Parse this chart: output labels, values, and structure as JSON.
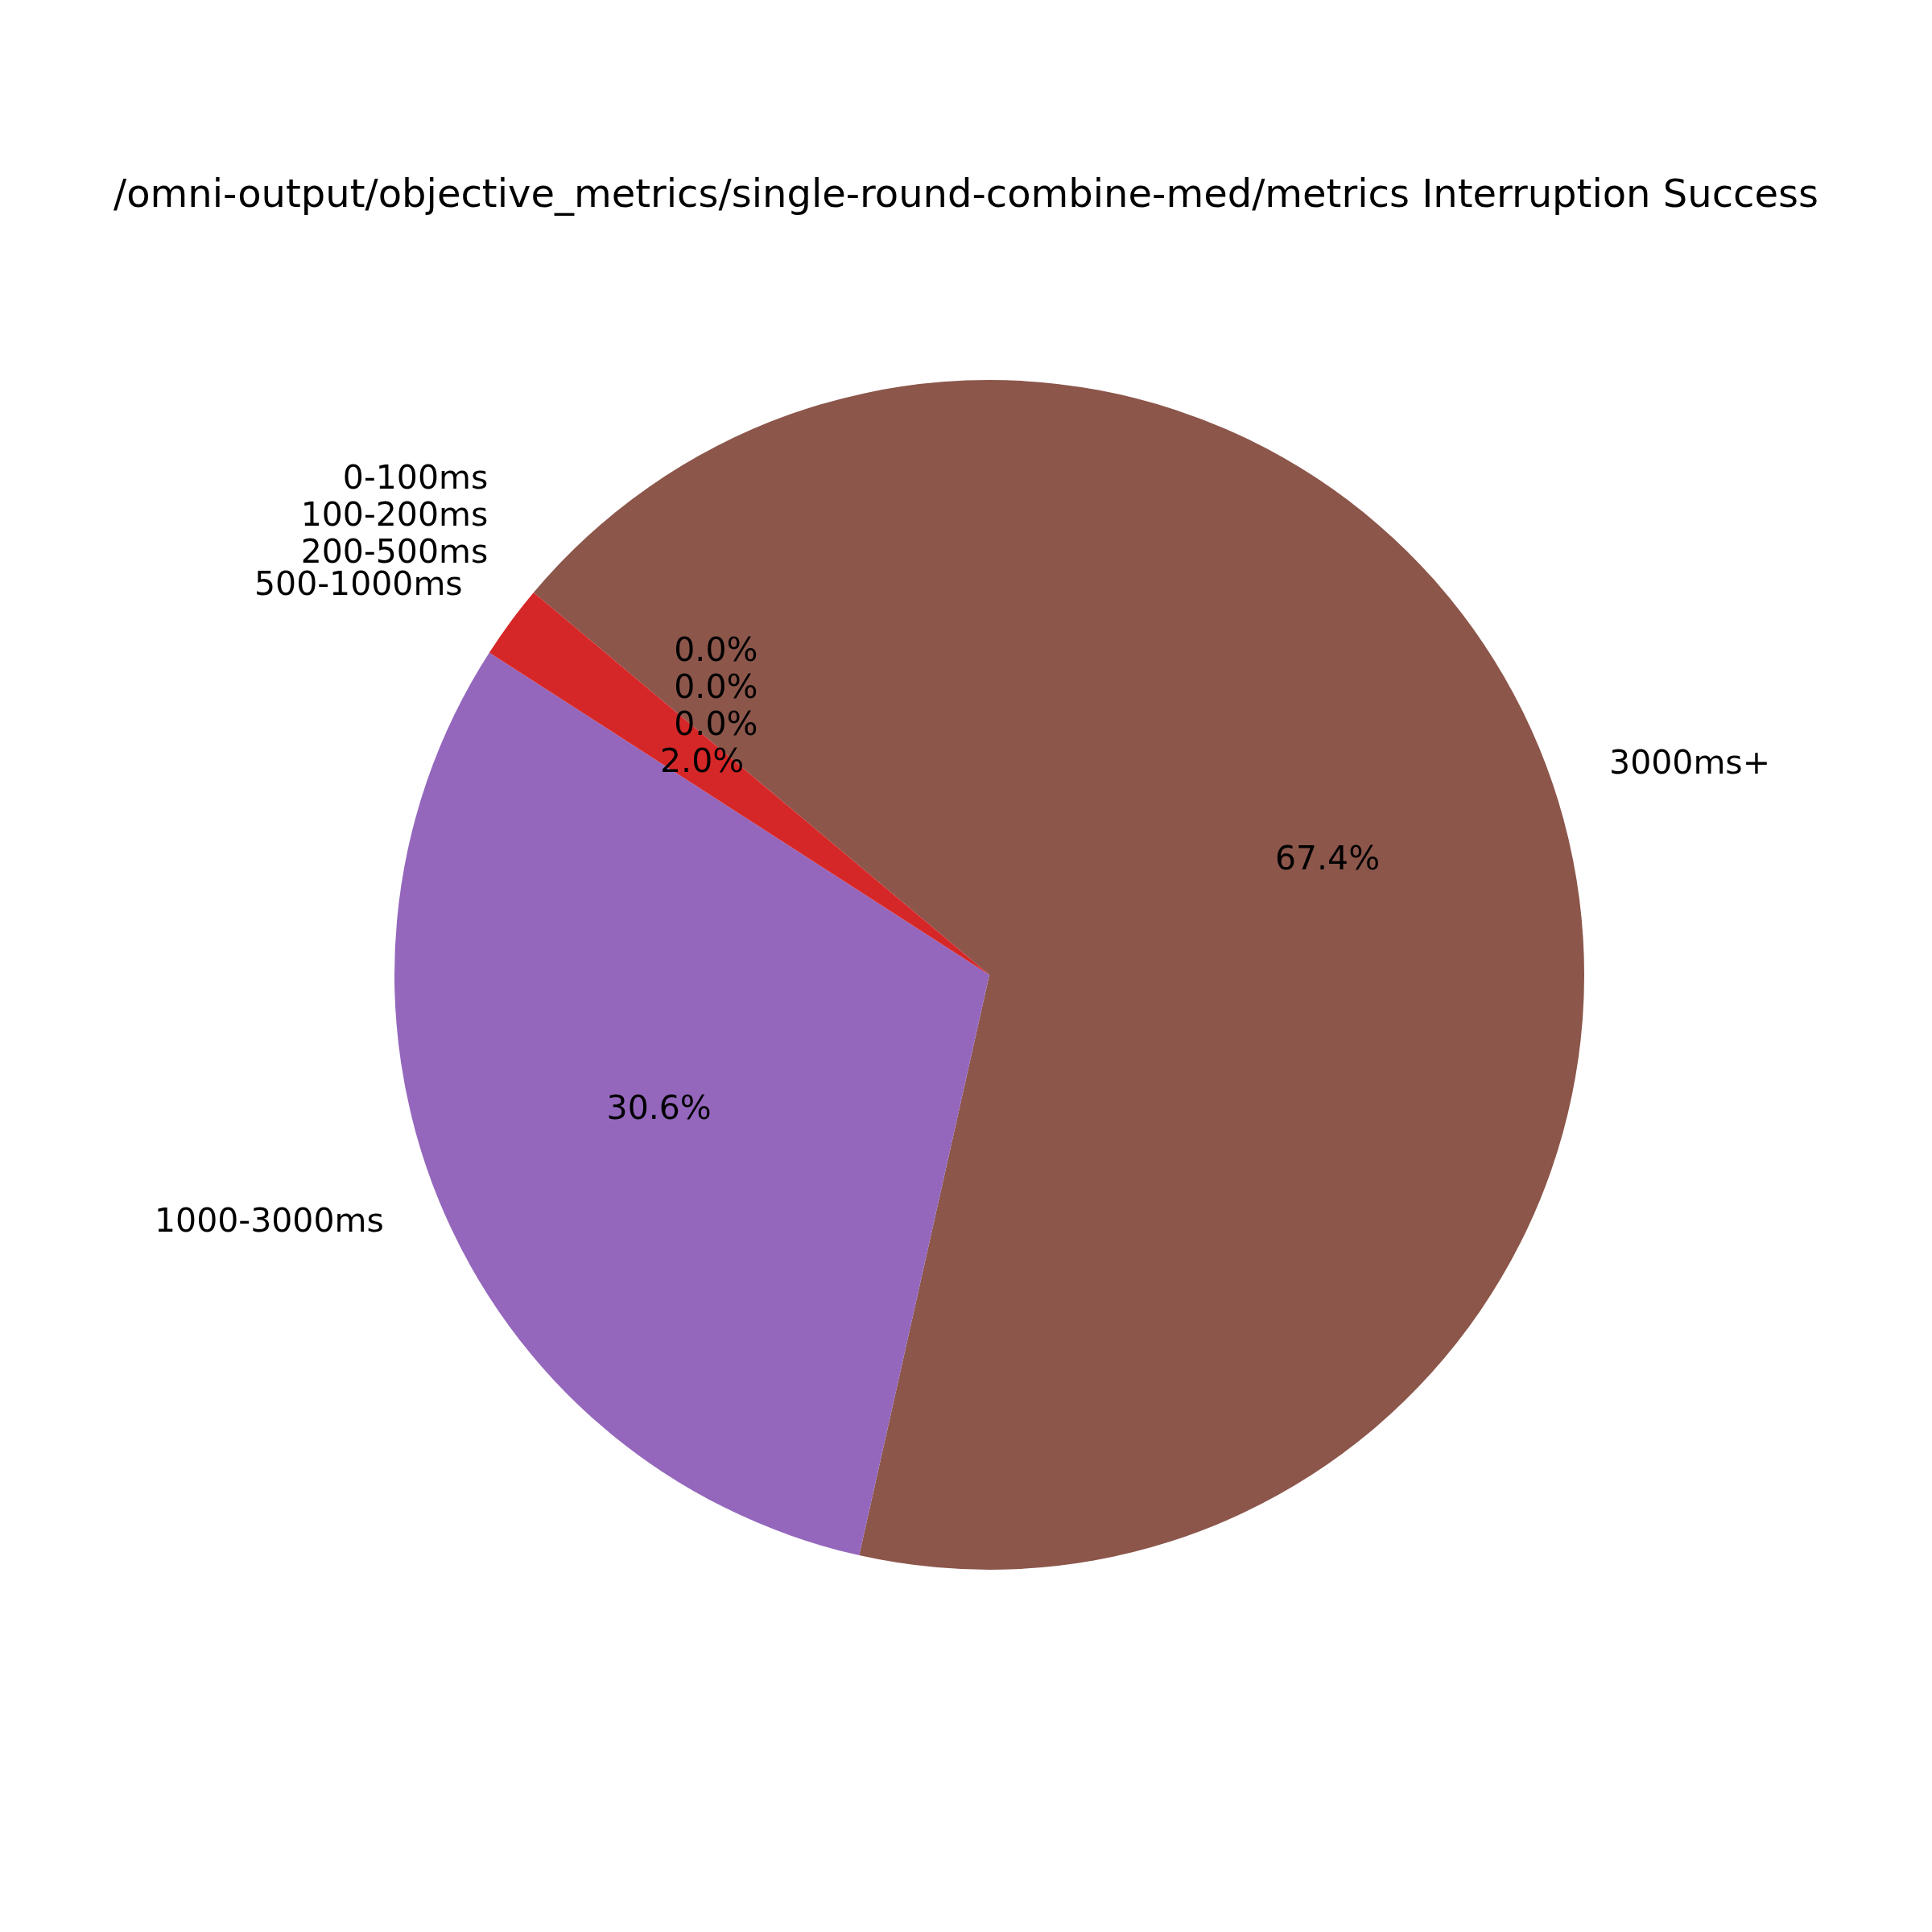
{
  "chart_data": {
    "type": "pie",
    "title": "/omni-output/objective_metrics/single-round-combine-med/metrics Interruption Success",
    "categories": [
      "0-100ms",
      "100-200ms",
      "200-500ms",
      "500-1000ms",
      "1000-3000ms",
      "3000ms+"
    ],
    "values": [
      0,
      0,
      0,
      2.0,
      30.6,
      67.4
    ],
    "colors": [
      "#1f77b4",
      "#ff7f0e",
      "#2ca02c",
      "#d62728",
      "#9467bd",
      "#8c564b"
    ],
    "value_labels": [
      "0.0%",
      "0.0%",
      "0.0%",
      "2.0%",
      "30.6%",
      "67.4%"
    ]
  }
}
